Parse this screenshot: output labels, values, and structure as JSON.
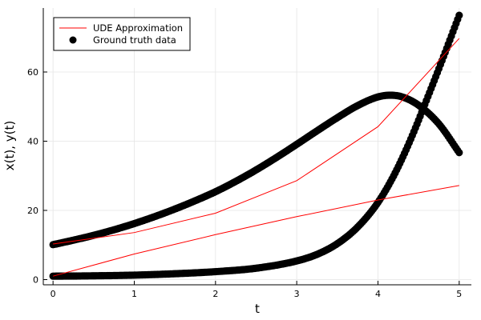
{
  "chart_data": {
    "type": "line",
    "xlabel": "t",
    "ylabel": "x(t), y(t)",
    "xlim": [
      -0.12,
      5.15
    ],
    "ylim": [
      -1.5,
      78.5
    ],
    "xticks": [
      0,
      1,
      2,
      3,
      4,
      5
    ],
    "yticks": [
      0,
      20,
      40,
      60
    ],
    "grid": true,
    "legend_position": "top-left",
    "series": [
      {
        "name": "UDE Approximation",
        "color": "#ff0000",
        "style": "line",
        "curves": [
          {
            "x": [
              0,
              1,
              2,
              3,
              4,
              5
            ],
            "y": [
              10.3,
              13.6,
              19.2,
              28.6,
              44.2,
              69.7
            ]
          },
          {
            "x": [
              0,
              1,
              2,
              3,
              4,
              5
            ],
            "y": [
              1.0,
              7.4,
              13.0,
              18.2,
              23.0,
              27.2
            ]
          }
        ]
      },
      {
        "name": "Ground truth data",
        "color": "#000000",
        "style": "markers",
        "curves": [
          {
            "x": [
              0,
              0.25,
              0.5,
              0.75,
              1.0,
              1.25,
              1.5,
              1.75,
              2.0,
              2.25,
              2.5,
              2.75,
              3.0,
              3.25,
              3.5,
              3.75,
              4.0,
              4.15,
              4.3,
              4.5,
              4.75,
              5.0
            ],
            "y": [
              10.1,
              11.4,
              12.8,
              14.4,
              16.2,
              18.2,
              20.4,
              22.8,
              25.4,
              28.4,
              31.7,
              35.3,
              39.1,
              43.0,
              46.8,
              50.3,
              52.8,
              53.3,
              52.8,
              50.4,
              45.0,
              36.7
            ]
          },
          {
            "x": [
              0,
              0.5,
              1.0,
              1.5,
              2.0,
              2.5,
              3.0,
              3.25,
              3.5,
              3.75,
              4.0,
              4.2,
              4.4,
              4.6,
              4.8,
              5.0
            ],
            "y": [
              1.0,
              1.1,
              1.3,
              1.7,
              2.3,
              3.3,
              5.4,
              7.3,
              10.4,
              15.2,
              22.3,
              30.3,
              40.4,
              52.0,
              64.0,
              76.4
            ]
          }
        ]
      }
    ]
  }
}
